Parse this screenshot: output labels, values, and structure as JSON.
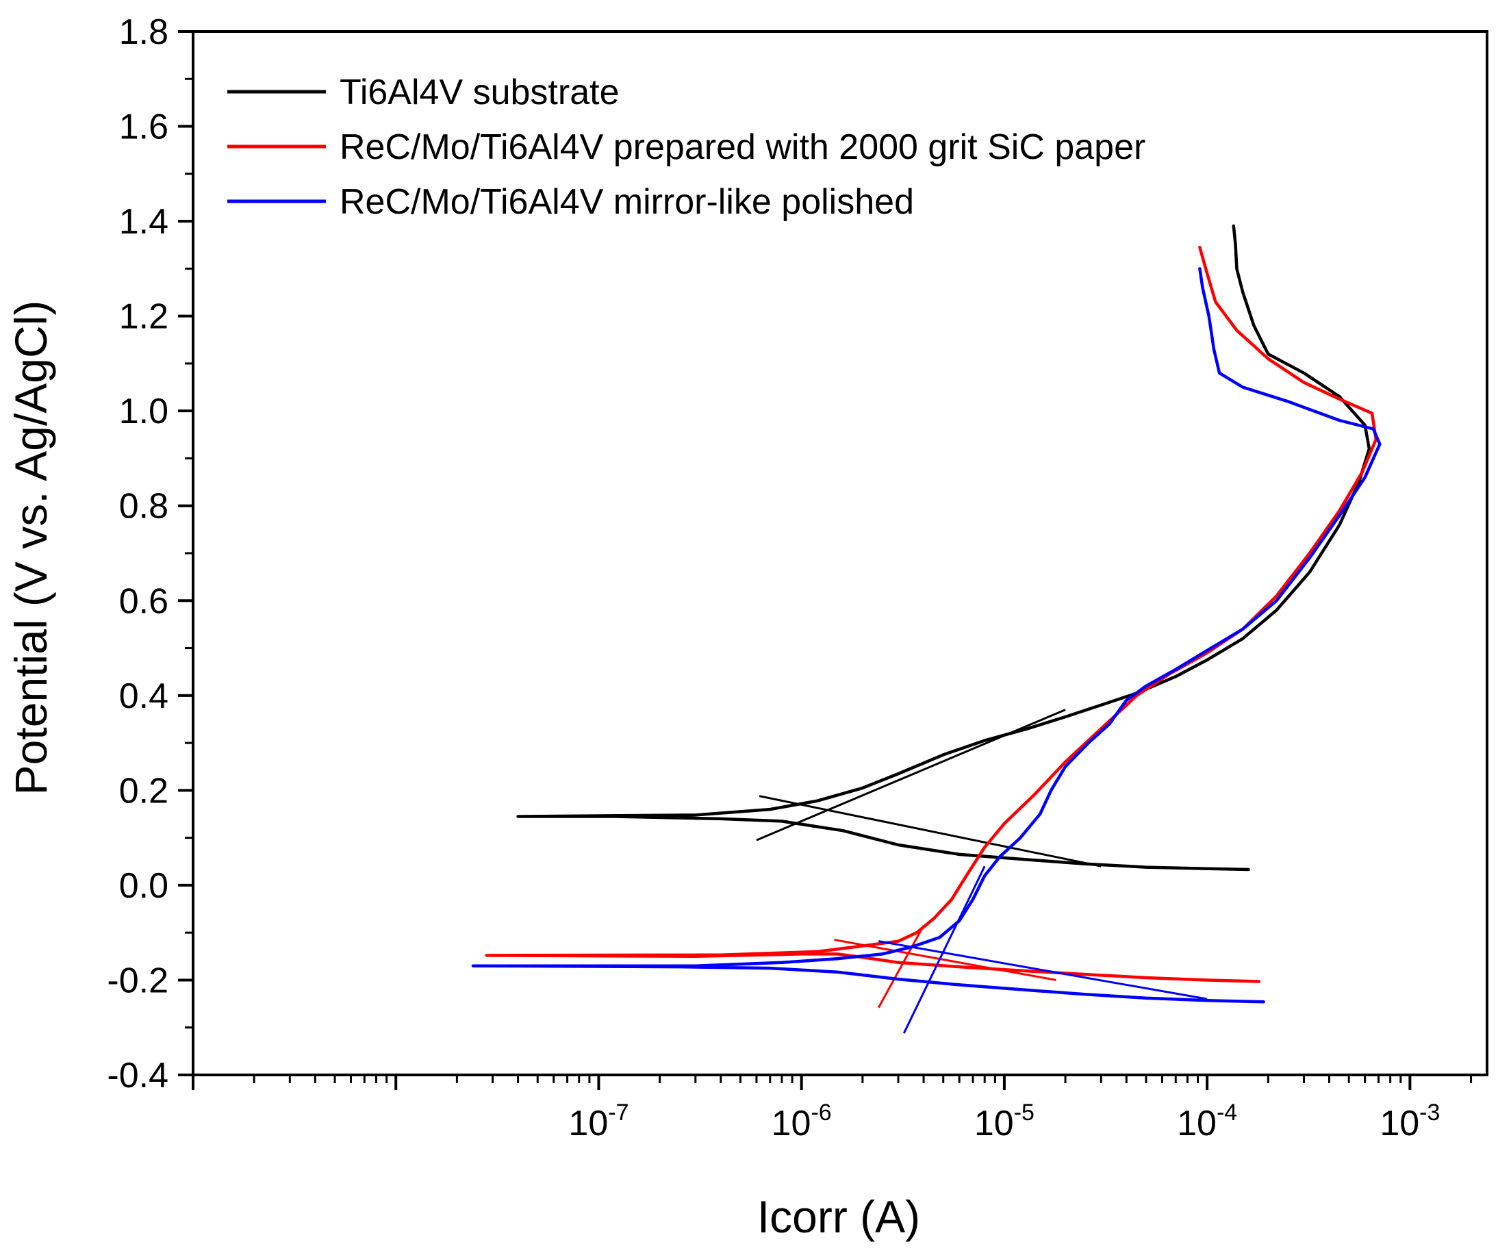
{
  "chart_data": {
    "type": "line",
    "xlabel": "Icorr (A)",
    "ylabel": "Potential (V vs. Ag/AgCl)",
    "xscale": "log",
    "xlim": [
      1e-09,
      0.0024
    ],
    "ylim": [
      -0.4,
      1.8
    ],
    "y_ticks": [
      -0.4,
      -0.2,
      0.0,
      0.2,
      0.4,
      0.6,
      0.8,
      1.0,
      1.2,
      1.4,
      1.6,
      1.8
    ],
    "y_tick_labels": [
      "-0.4",
      "-0.2",
      "0.0",
      "0.2",
      "0.4",
      "0.6",
      "0.8",
      "1.0",
      "1.2",
      "1.4",
      "1.6",
      "1.8"
    ],
    "x_ticks": [
      {
        "value": 1e-07,
        "base": "10",
        "exp": "-7"
      },
      {
        "value": 1e-06,
        "base": "10",
        "exp": "-6"
      },
      {
        "value": 1e-05,
        "base": "10",
        "exp": "-5"
      },
      {
        "value": 0.0001,
        "base": "10",
        "exp": "-4"
      },
      {
        "value": 0.001,
        "base": "10",
        "exp": "-3"
      }
    ],
    "legend_position": "top-left",
    "series": [
      {
        "name": "Ti6Al4V substrate",
        "color": "#000000",
        "points": [
          [
            0.00016,
            0.033
          ],
          [
            0.0001,
            0.035
          ],
          [
            5e-05,
            0.038
          ],
          [
            2.5e-05,
            0.045
          ],
          [
            1.2e-05,
            0.055
          ],
          [
            6e-06,
            0.065
          ],
          [
            3e-06,
            0.085
          ],
          [
            1.6e-06,
            0.115
          ],
          [
            8e-07,
            0.135
          ],
          [
            4e-07,
            0.14
          ],
          [
            1.2e-07,
            0.145
          ],
          [
            4e-08,
            0.145
          ],
          [
            3e-07,
            0.148
          ],
          [
            7e-07,
            0.16
          ],
          [
            1.2e-06,
            0.178
          ],
          [
            2e-06,
            0.205
          ],
          [
            3e-06,
            0.235
          ],
          [
            5e-06,
            0.275
          ],
          [
            8e-06,
            0.305
          ],
          [
            1.3e-05,
            0.33
          ],
          [
            2e-05,
            0.355
          ],
          [
            3e-05,
            0.38
          ],
          [
            4.5e-05,
            0.405
          ],
          [
            7e-05,
            0.44
          ],
          [
            0.0001,
            0.475
          ],
          [
            0.00015,
            0.52
          ],
          [
            0.00022,
            0.58
          ],
          [
            0.00032,
            0.66
          ],
          [
            0.00045,
            0.76
          ],
          [
            0.00056,
            0.85
          ],
          [
            0.00063,
            0.92
          ],
          [
            0.0006,
            0.97
          ],
          [
            0.00045,
            1.03
          ],
          [
            0.0003,
            1.08
          ],
          [
            0.0002,
            1.12
          ],
          [
            0.00017,
            1.18
          ],
          [
            0.00015,
            1.25
          ],
          [
            0.00014,
            1.3
          ],
          [
            0.000138,
            1.35
          ],
          [
            0.000135,
            1.39
          ]
        ],
        "tafel_fits": [
          [
            [
              6.2e-07,
              0.188
            ],
            [
              3e-05,
              0.04
            ]
          ],
          [
            [
              6e-07,
              0.095
            ],
            [
              2e-05,
              0.37
            ]
          ]
        ]
      },
      {
        "name": "ReC/Mo/Ti6Al4V prepared with 2000 grit SiC paper",
        "color": "#ff0000",
        "points": [
          [
            0.00018,
            -0.203
          ],
          [
            0.0001,
            -0.2
          ],
          [
            5e-05,
            -0.195
          ],
          [
            2.5e-05,
            -0.188
          ],
          [
            1.2e-05,
            -0.18
          ],
          [
            6e-06,
            -0.172
          ],
          [
            3e-06,
            -0.163
          ],
          [
            2e-06,
            -0.152
          ],
          [
            1.5e-06,
            -0.145
          ],
          [
            1e-06,
            -0.145
          ],
          [
            3e-07,
            -0.15
          ],
          [
            2.8e-08,
            -0.148
          ],
          [
            4e-07,
            -0.147
          ],
          [
            1.2e-06,
            -0.14
          ],
          [
            2e-06,
            -0.128
          ],
          [
            3e-06,
            -0.118
          ],
          [
            3.7e-06,
            -0.1
          ],
          [
            4.5e-06,
            -0.07
          ],
          [
            5.5e-06,
            -0.03
          ],
          [
            6.5e-06,
            0.02
          ],
          [
            8e-06,
            0.08
          ],
          [
            1e-05,
            0.13
          ],
          [
            1.4e-05,
            0.19
          ],
          [
            2e-05,
            0.26
          ],
          [
            3e-05,
            0.33
          ],
          [
            4.5e-05,
            0.4
          ],
          [
            6.5e-05,
            0.445
          ],
          [
            0.0001,
            0.49
          ],
          [
            0.00015,
            0.54
          ],
          [
            0.00022,
            0.61
          ],
          [
            0.00032,
            0.7
          ],
          [
            0.00045,
            0.79
          ],
          [
            0.00058,
            0.87
          ],
          [
            0.00068,
            0.94
          ],
          [
            0.00065,
            0.995
          ],
          [
            0.00045,
            1.025
          ],
          [
            0.0003,
            1.06
          ],
          [
            0.0002,
            1.11
          ],
          [
            0.00014,
            1.17
          ],
          [
            0.00011,
            1.23
          ],
          [
            0.0001,
            1.29
          ],
          [
            9.2e-05,
            1.345
          ]
        ],
        "tafel_fits": [
          [
            [
              1.45e-06,
              -0.115
            ],
            [
              1.8e-05,
              -0.2
            ]
          ],
          [
            [
              2.4e-06,
              -0.258
            ],
            [
              4e-06,
              -0.085
            ]
          ]
        ]
      },
      {
        "name": "ReC/Mo/Ti6Al4V mirror-like polished",
        "color": "#0000ff",
        "points": [
          [
            0.00019,
            -0.246
          ],
          [
            0.0001,
            -0.243
          ],
          [
            5e-05,
            -0.238
          ],
          [
            2.5e-05,
            -0.23
          ],
          [
            1.2e-05,
            -0.22
          ],
          [
            6e-06,
            -0.21
          ],
          [
            3e-06,
            -0.198
          ],
          [
            1.5e-06,
            -0.183
          ],
          [
            7e-07,
            -0.175
          ],
          [
            2.5e-07,
            -0.172
          ],
          [
            2.4e-08,
            -0.17
          ],
          [
            3e-07,
            -0.17
          ],
          [
            8e-07,
            -0.163
          ],
          [
            1.5e-06,
            -0.155
          ],
          [
            2.5e-06,
            -0.145
          ],
          [
            3.5e-06,
            -0.13
          ],
          [
            4.8e-06,
            -0.11
          ],
          [
            6e-06,
            -0.075
          ],
          [
            7e-06,
            -0.03
          ],
          [
            8e-06,
            0.02
          ],
          [
            9.5e-06,
            0.06
          ],
          [
            1.2e-05,
            0.1
          ],
          [
            1.5e-05,
            0.15
          ],
          [
            1.7e-05,
            0.2
          ],
          [
            2e-05,
            0.25
          ],
          [
            2.6e-05,
            0.3
          ],
          [
            3.3e-05,
            0.34
          ],
          [
            4e-05,
            0.39
          ],
          [
            5e-05,
            0.42
          ],
          [
            7e-05,
            0.455
          ],
          [
            0.0001,
            0.495
          ],
          [
            0.00015,
            0.54
          ],
          [
            0.00022,
            0.6
          ],
          [
            0.00032,
            0.69
          ],
          [
            0.00045,
            0.78
          ],
          [
            0.0006,
            0.86
          ],
          [
            0.00071,
            0.93
          ],
          [
            0.00066,
            0.962
          ],
          [
            0.00045,
            0.98
          ],
          [
            0.00025,
            1.02
          ],
          [
            0.00015,
            1.05
          ],
          [
            0.000115,
            1.08
          ],
          [
            0.000108,
            1.13
          ],
          [
            0.000102,
            1.2
          ],
          [
            9.5e-05,
            1.26
          ],
          [
            9.2e-05,
            1.3
          ]
        ],
        "tafel_fits": [
          [
            [
              2.4e-06,
              -0.118
            ],
            [
              0.0001,
              -0.24
            ]
          ],
          [
            [
              3.2e-06,
              -0.312
            ],
            [
              8e-06,
              0.04
            ]
          ]
        ]
      }
    ]
  }
}
